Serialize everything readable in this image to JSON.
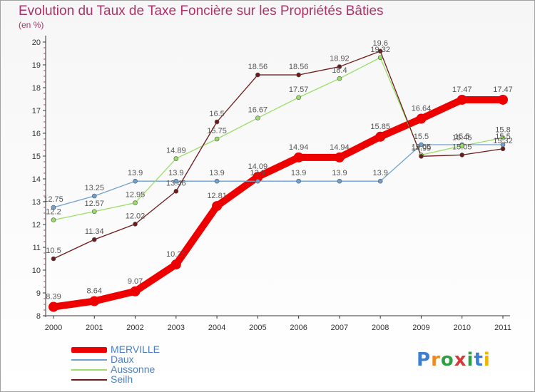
{
  "chart_data": {
    "type": "line",
    "title": "Evolution du Taux de Taxe Foncière sur les Propriétés Bâties",
    "unit_label": "(en %)",
    "x": [
      "2000",
      "2001",
      "2002",
      "2003",
      "2004",
      "2005",
      "2006",
      "2007",
      "2008",
      "2009",
      "2010",
      "2011"
    ],
    "ylim": [
      8,
      20
    ],
    "yticks": [
      "8",
      "9",
      "10",
      "11",
      "12",
      "13",
      "14",
      "15",
      "16",
      "17",
      "18",
      "19",
      "20"
    ],
    "grid": false,
    "series": [
      {
        "name": "MERVILLE",
        "color": "#ee0000",
        "values": [
          8.39,
          8.64,
          9.07,
          10.25,
          12.81,
          14.09,
          14.94,
          14.94,
          15.85,
          16.64,
          17.47,
          17.47
        ],
        "labels": [
          "8.39",
          "8.64",
          "9.07",
          "10.25",
          "12.81",
          "14.09",
          "14.94",
          "14.94",
          "15.85",
          "16.64",
          "17.47",
          "17.47"
        ]
      },
      {
        "name": "Daux",
        "color": "#6fa0d0",
        "values": [
          12.75,
          13.25,
          13.9,
          13.9,
          13.9,
          13.9,
          13.9,
          13.9,
          13.9,
          15.5,
          15.5,
          15.5
        ],
        "labels": [
          "12.75",
          "13.25",
          "13.9",
          "13.9",
          "13.9",
          "13.9",
          "13.9",
          "13.9",
          "13.9",
          "15.5",
          "15.5",
          "15.5"
        ]
      },
      {
        "name": "Aussonne",
        "color": "#99dd66",
        "values": [
          12.2,
          12.57,
          12.95,
          14.89,
          15.75,
          16.67,
          17.57,
          18.4,
          19.32,
          15.05,
          15.45,
          15.8
        ],
        "labels": [
          "12.2",
          "12.57",
          "12.95",
          "14.89",
          "15.75",
          "16.67",
          "17.57",
          "18.4",
          "19.32",
          "15.05",
          "15.45",
          "15.8"
        ]
      },
      {
        "name": "Seilh",
        "color": "#6e1a1a",
        "values": [
          10.5,
          11.34,
          12.02,
          13.46,
          16.5,
          18.56,
          18.56,
          18.92,
          19.6,
          14.99,
          15.05,
          15.32
        ],
        "labels": [
          "10.5",
          "11.34",
          "12.02",
          "13.46",
          "16.5",
          "18.56",
          "18.56",
          "18.92",
          "19.6",
          "14.99",
          "15.05",
          "15.32"
        ]
      }
    ],
    "legend_position": "bottom-left"
  },
  "brand": {
    "letters": [
      "P",
      "r",
      "o",
      "x",
      "i",
      "t",
      "i"
    ],
    "colors": [
      "#3a7fd0",
      "#f08a1a",
      "#2ea043",
      "#d33b3b",
      "#2ea043",
      "#3a7fd0",
      "#f0b400"
    ]
  }
}
